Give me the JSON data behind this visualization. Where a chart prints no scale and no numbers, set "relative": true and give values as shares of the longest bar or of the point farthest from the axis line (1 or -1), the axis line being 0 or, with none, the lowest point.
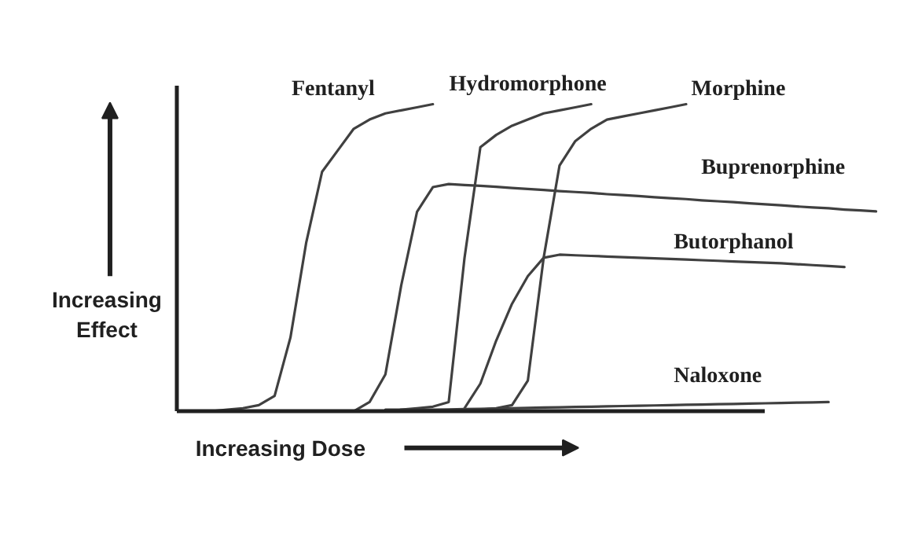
{
  "chart_data": {
    "type": "line",
    "relative": true,
    "xlabel": "Increasing Dose",
    "ylabel": "Increasing\nEffect",
    "line_style": "solid",
    "categories": [
      null,
      null,
      null,
      null,
      null,
      null,
      null,
      null,
      null,
      null,
      null,
      null,
      null,
      null,
      null,
      null,
      null,
      null,
      null,
      null,
      null,
      null,
      null,
      null,
      null,
      null,
      null,
      null,
      null,
      null,
      null,
      null,
      null,
      null,
      null,
      null,
      null,
      null,
      null,
      null,
      null,
      null,
      null,
      null,
      null
    ],
    "series": [
      {
        "name": "Fentanyl",
        "color": "#404040",
        "values": [
          0,
          0,
          0,
          0.005,
          0.01,
          0.02,
          0.05,
          0.24,
          0.55,
          0.78,
          0.85,
          0.92,
          0.95,
          0.97,
          0.98,
          0.99,
          1.0,
          null,
          null,
          null,
          null,
          null,
          null,
          null,
          null,
          null,
          null,
          null,
          null,
          null,
          null,
          null,
          null,
          null,
          null,
          null,
          null,
          null,
          null,
          null,
          null,
          null,
          null,
          null,
          null
        ]
      },
      {
        "name": "Hydromorphone",
        "color": "#404040",
        "values": [
          null,
          null,
          null,
          null,
          null,
          null,
          null,
          null,
          null,
          null,
          null,
          null,
          null,
          0,
          0.005,
          0.01,
          0.015,
          0.03,
          0.5,
          0.86,
          0.9,
          0.93,
          0.95,
          0.97,
          0.98,
          0.99,
          1.0,
          null,
          null,
          null,
          null,
          null,
          null,
          null,
          null,
          null,
          null,
          null,
          null,
          null,
          null,
          null,
          null,
          null,
          null
        ]
      },
      {
        "name": "Morphine",
        "color": "#404040",
        "values": [
          null,
          null,
          null,
          null,
          null,
          null,
          null,
          null,
          null,
          null,
          null,
          null,
          null,
          null,
          null,
          null,
          null,
          null,
          0,
          0.005,
          0.01,
          0.02,
          0.1,
          0.5,
          0.8,
          0.88,
          0.92,
          0.95,
          0.96,
          0.97,
          0.98,
          0.99,
          1.0,
          null,
          null,
          null,
          null,
          null,
          null,
          null,
          null,
          null,
          null,
          null,
          null
        ]
      },
      {
        "name": "Buprenorphine",
        "color": "#404040",
        "values": [
          null,
          null,
          null,
          null,
          null,
          null,
          null,
          null,
          null,
          null,
          null,
          0,
          0.03,
          0.12,
          0.41,
          0.65,
          0.73,
          0.74,
          0.737,
          0.734,
          0.731,
          0.727,
          0.724,
          0.721,
          0.717,
          0.714,
          0.711,
          0.707,
          0.704,
          0.701,
          0.697,
          0.694,
          0.691,
          0.687,
          0.684,
          0.681,
          0.677,
          0.674,
          0.671,
          0.667,
          0.664,
          0.661,
          0.657,
          0.654,
          0.651
        ]
      },
      {
        "name": "Butorphanol",
        "color": "#404040",
        "values": [
          null,
          null,
          null,
          null,
          null,
          null,
          null,
          null,
          null,
          null,
          null,
          null,
          null,
          null,
          null,
          null,
          null,
          null,
          0.01,
          0.09,
          0.23,
          0.35,
          0.44,
          0.5,
          0.51,
          0.508,
          0.506,
          0.504,
          0.502,
          0.5,
          0.498,
          0.496,
          0.494,
          0.492,
          0.49,
          0.488,
          0.486,
          0.484,
          0.482,
          0.479,
          0.476,
          0.473,
          0.47,
          null,
          null
        ]
      },
      {
        "name": "Naloxone",
        "color": "#404040",
        "values": [
          null,
          null,
          null,
          null,
          null,
          null,
          null,
          null,
          null,
          null,
          null,
          null,
          null,
          0.005,
          0.005,
          0.005,
          0.005,
          0.006,
          0.007,
          0.008,
          0.009,
          0.01,
          0.011,
          0.012,
          0.013,
          0.014,
          0.015,
          0.016,
          0.017,
          0.018,
          0.019,
          0.02,
          0.021,
          0.022,
          0.023,
          0.024,
          0.025,
          0.026,
          0.027,
          0.028,
          0.029,
          0.03,
          null,
          null,
          null
        ]
      }
    ]
  }
}
